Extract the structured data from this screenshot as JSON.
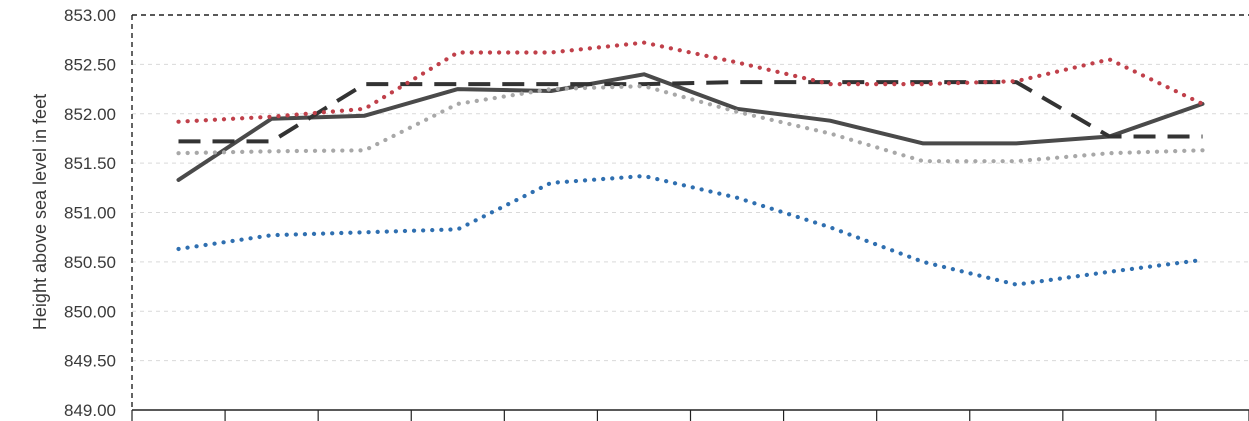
{
  "chart_data": {
    "type": "line",
    "title": "",
    "xlabel": "",
    "ylabel": "Height above sea level in feet",
    "ylim": [
      849.0,
      853.0
    ],
    "yticks": [
      "849.00",
      "849.50",
      "850.00",
      "850.50",
      "851.00",
      "851.50",
      "852.00",
      "852.50",
      "853.00"
    ],
    "grid": "horizontal-dashed",
    "categories": [
      "",
      "",
      "",
      "",
      "",
      "",
      "",
      "",
      "",
      "",
      "",
      ""
    ],
    "series": [
      {
        "name": "",
        "style": "solid",
        "color": "#4a4a4a",
        "values": [
          851.33,
          851.95,
          851.98,
          852.25,
          852.23,
          852.4,
          852.05,
          851.93,
          851.7,
          851.7,
          851.77,
          852.1
        ]
      },
      {
        "name": "",
        "style": "dashed",
        "color": "#333333",
        "values": [
          851.72,
          851.72,
          852.3,
          852.3,
          852.3,
          852.3,
          852.32,
          852.32,
          852.32,
          852.32,
          851.77,
          851.77
        ]
      },
      {
        "name": "",
        "style": "dotted",
        "color": "#c0404a",
        "values": [
          851.92,
          851.97,
          852.05,
          852.62,
          852.62,
          852.72,
          852.52,
          852.3,
          852.3,
          852.33,
          852.55,
          852.1
        ]
      },
      {
        "name": "",
        "style": "dotted",
        "color": "#a8a8a8",
        "values": [
          851.6,
          851.62,
          851.63,
          852.1,
          852.25,
          852.28,
          852.02,
          851.8,
          851.52,
          851.52,
          851.6,
          851.63
        ]
      },
      {
        "name": "",
        "style": "dotted",
        "color": "#2f6fb0",
        "values": [
          850.63,
          850.77,
          850.8,
          850.83,
          851.3,
          851.37,
          851.15,
          850.85,
          850.5,
          850.27,
          850.4,
          850.52
        ]
      }
    ]
  }
}
